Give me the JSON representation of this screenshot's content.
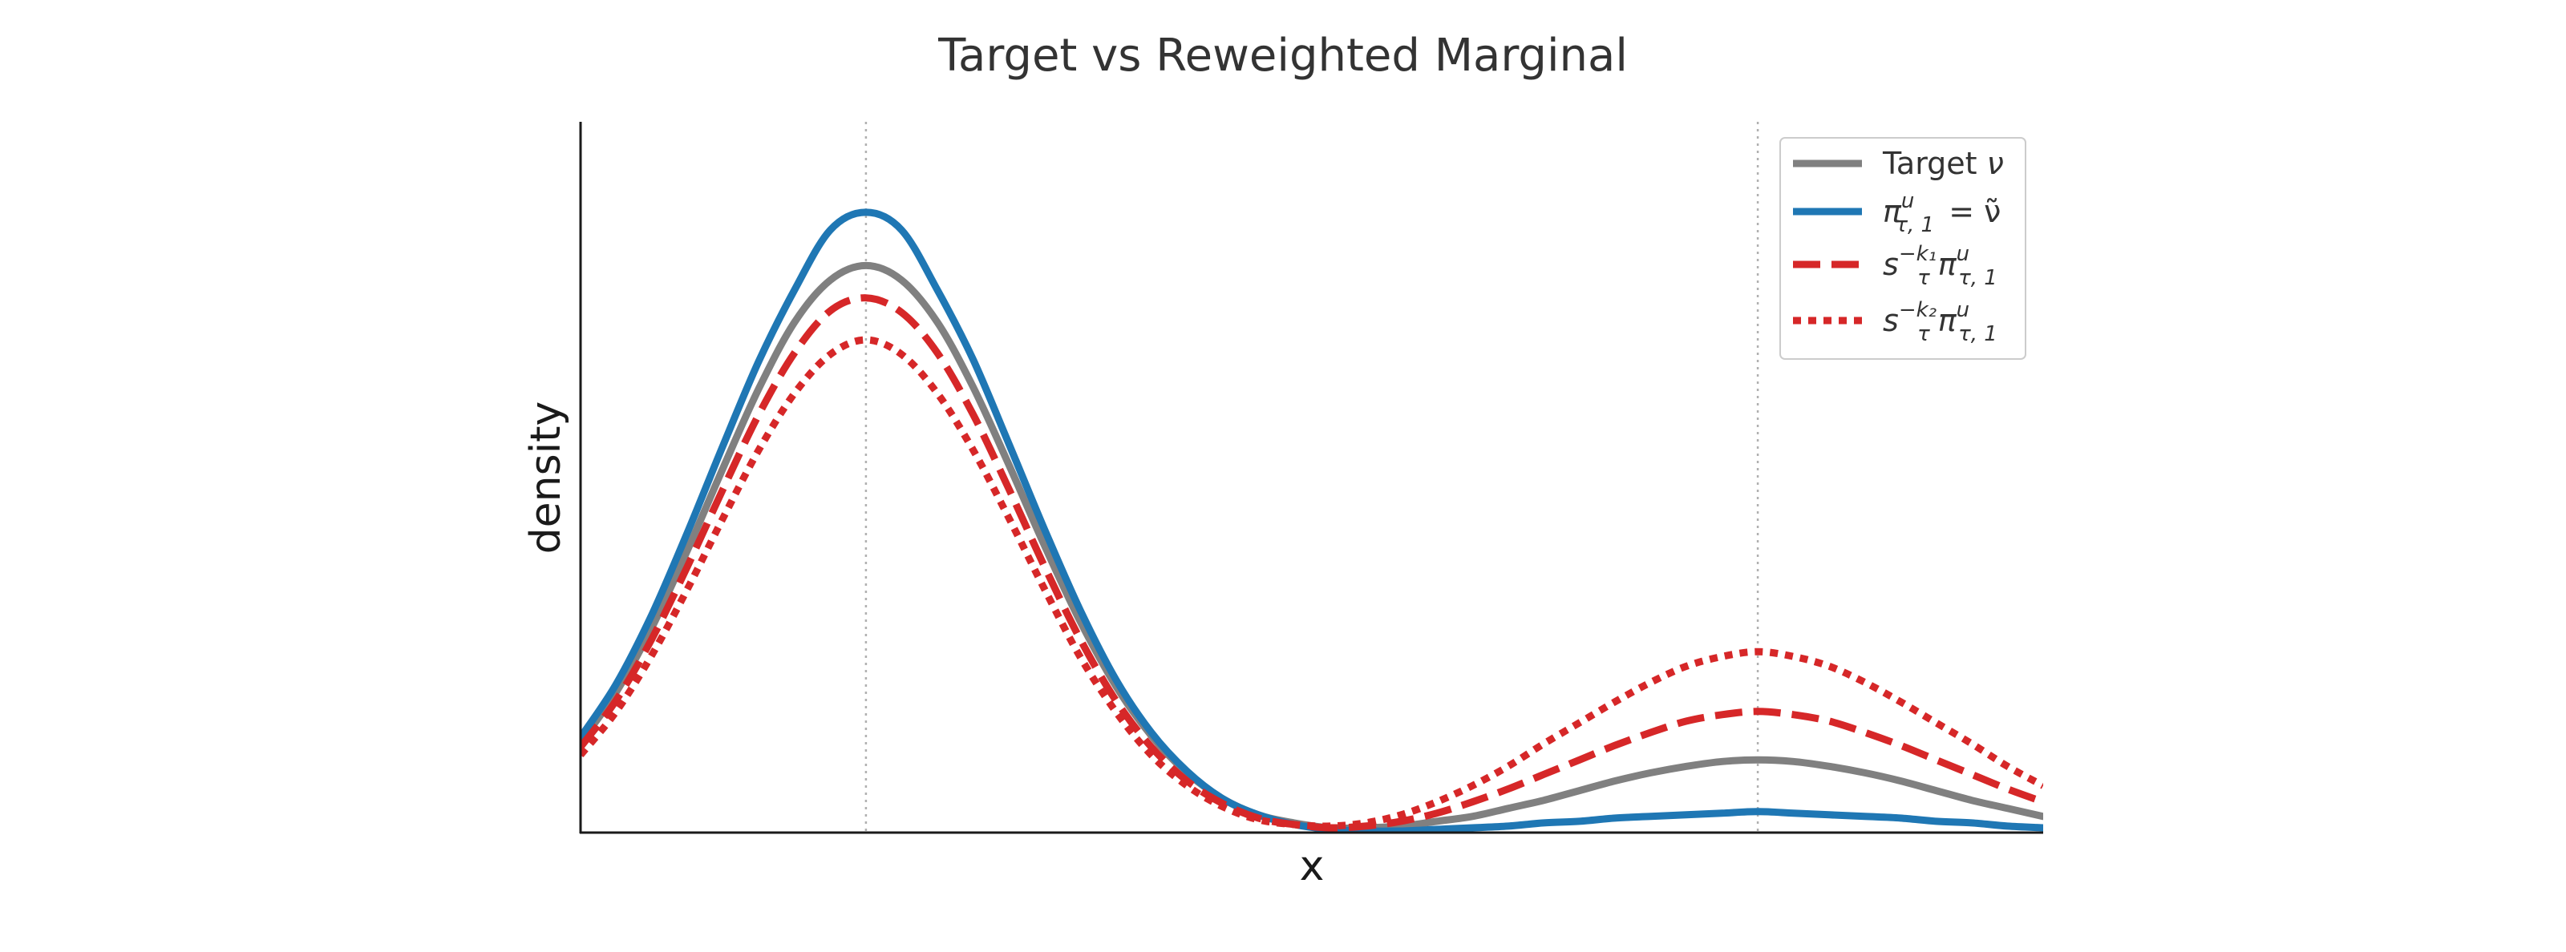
{
  "chart_data": {
    "type": "line",
    "title": "Target vs Reweighted Marginal",
    "xlabel": "x",
    "ylabel": "density",
    "xlim": [
      -4.5,
      16.0
    ],
    "ylim": [
      0,
      0.44
    ],
    "x_ticks": [],
    "y_ticks": [],
    "grid": false,
    "reference_lines_x": [
      -0.5,
      12.0
    ],
    "legend_position": "top-right",
    "series": [
      {
        "name": "Target ν",
        "color": "#808080",
        "style": "solid",
        "x": [
          -4.5,
          -4,
          -3.5,
          -3,
          -2.5,
          -2,
          -1.5,
          -1,
          -0.5,
          0,
          0.5,
          1,
          1.5,
          2,
          2.5,
          3,
          3.5,
          4,
          4.5,
          5,
          5.5,
          6,
          6.5,
          7,
          7.5,
          8,
          8.5,
          9,
          9.5,
          10,
          10.5,
          11,
          11.5,
          12,
          12.5,
          13,
          13.5,
          14,
          14.5,
          15,
          15.5,
          16
        ],
        "values": [
          0.056,
          0.087,
          0.127,
          0.175,
          0.226,
          0.275,
          0.316,
          0.342,
          0.351,
          0.342,
          0.316,
          0.276,
          0.228,
          0.178,
          0.131,
          0.091,
          0.06,
          0.037,
          0.021,
          0.011,
          0.006,
          0.003,
          0.003,
          0.004,
          0.007,
          0.01,
          0.015,
          0.02,
          0.026,
          0.032,
          0.037,
          0.041,
          0.044,
          0.045,
          0.044,
          0.041,
          0.037,
          0.032,
          0.026,
          0.02,
          0.015,
          0.01
        ]
      },
      {
        "name": "π^u_{τ,1} = ν̃",
        "color": "#1f77b4",
        "style": "solid",
        "x": [
          -4.5,
          -4,
          -3.5,
          -3,
          -2.5,
          -2,
          -1.5,
          -1,
          -0.5,
          0,
          0.5,
          1,
          1.5,
          2,
          2.5,
          3,
          3.5,
          4,
          4.5,
          5,
          5.5,
          6,
          6.5,
          7,
          7.5,
          8,
          8.5,
          9,
          9.5,
          10,
          10.5,
          11,
          11.5,
          12,
          12.5,
          13,
          13.5,
          14,
          14.5,
          15,
          15.5,
          16
        ],
        "values": [
          0.059,
          0.092,
          0.135,
          0.186,
          0.24,
          0.292,
          0.336,
          0.373,
          0.384,
          0.373,
          0.336,
          0.293,
          0.241,
          0.188,
          0.138,
          0.095,
          0.062,
          0.038,
          0.021,
          0.011,
          0.005,
          0.002,
          0.001,
          0.001,
          0.002,
          0.003,
          0.004,
          0.006,
          0.007,
          0.009,
          0.01,
          0.011,
          0.012,
          0.013,
          0.012,
          0.011,
          0.01,
          0.009,
          0.007,
          0.006,
          0.004,
          0.003
        ]
      },
      {
        "name": "s_τ^{-k₁} π^u_{τ,1}",
        "color": "#d62728",
        "style": "dashed",
        "x": [
          -4.5,
          -4,
          -3.5,
          -3,
          -2.5,
          -2,
          -1.5,
          -1,
          -0.5,
          0,
          0.5,
          1,
          1.5,
          2,
          2.5,
          3,
          3.5,
          4,
          4.5,
          5,
          5.5,
          6,
          6.5,
          7,
          7.5,
          8,
          8.5,
          9,
          9.5,
          10,
          10.5,
          11,
          11.5,
          12,
          12.5,
          13,
          13.5,
          14,
          14.5,
          15,
          15.5,
          16
        ],
        "values": [
          0.053,
          0.082,
          0.12,
          0.165,
          0.213,
          0.259,
          0.297,
          0.323,
          0.331,
          0.322,
          0.297,
          0.259,
          0.213,
          0.165,
          0.12,
          0.082,
          0.053,
          0.032,
          0.018,
          0.009,
          0.005,
          0.003,
          0.004,
          0.007,
          0.012,
          0.019,
          0.027,
          0.036,
          0.045,
          0.054,
          0.062,
          0.069,
          0.073,
          0.075,
          0.073,
          0.069,
          0.062,
          0.054,
          0.045,
          0.036,
          0.027,
          0.019
        ]
      },
      {
        "name": "s_τ^{-k₂} π^u_{τ,1}",
        "color": "#d62728",
        "style": "dotted",
        "x": [
          -4.5,
          -4,
          -3.5,
          -3,
          -2.5,
          -2,
          -1.5,
          -1,
          -0.5,
          0,
          0.5,
          1,
          1.5,
          2,
          2.5,
          3,
          3.5,
          4,
          4.5,
          5,
          5.5,
          6,
          6.5,
          7,
          7.5,
          8,
          8.5,
          9,
          9.5,
          10,
          10.5,
          11,
          11.5,
          12,
          12.5,
          13,
          13.5,
          14,
          14.5,
          15,
          15.5,
          16
        ],
        "values": [
          0.048,
          0.075,
          0.11,
          0.151,
          0.195,
          0.237,
          0.272,
          0.296,
          0.305,
          0.296,
          0.272,
          0.237,
          0.195,
          0.151,
          0.109,
          0.075,
          0.048,
          0.029,
          0.016,
          0.008,
          0.005,
          0.004,
          0.006,
          0.011,
          0.019,
          0.029,
          0.041,
          0.055,
          0.068,
          0.081,
          0.093,
          0.103,
          0.109,
          0.112,
          0.109,
          0.103,
          0.093,
          0.081,
          0.068,
          0.055,
          0.041,
          0.029
        ]
      }
    ],
    "legend": [
      {
        "base": "Target",
        "sup": "",
        "sub": "",
        "tail": "ν"
      },
      {
        "base": "π",
        "sup": "u",
        "sub": "τ, 1",
        "tail": "= ν̃"
      },
      {
        "base": "s",
        "sup": "−k₁",
        "sub": "τ",
        "tail": "π",
        "tail_sup": "u",
        "tail_sub": "τ, 1"
      },
      {
        "base": "s",
        "sup": "−k₂",
        "sub": "τ",
        "tail": "π",
        "tail_sup": "u",
        "tail_sub": "τ, 1"
      }
    ]
  }
}
